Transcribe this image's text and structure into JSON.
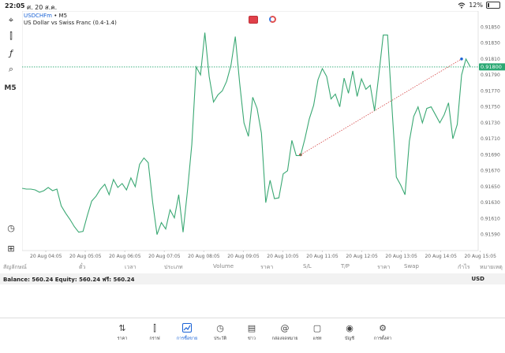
{
  "status": {
    "time": "22:05",
    "date": "ศ. 20 ส.ค.",
    "battery": "12%",
    "wifi_icon": "wifi-icon"
  },
  "symbol": {
    "name": "USDCHFm",
    "timeframe_suffix": " • M5",
    "description": "US Dollar vs Swiss Franc (0.4-1.4)"
  },
  "toolbar": {
    "timeframe": "M5"
  },
  "chart_data": {
    "type": "line",
    "current_price_label": "0.91800",
    "price_line": 0.918,
    "ylim": [
      0.9157,
      0.9187
    ],
    "y_ticks": [
      "0.91850",
      "0.91830",
      "0.91810",
      "0.91790",
      "0.91770",
      "0.91750",
      "0.91730",
      "0.91710",
      "0.91690",
      "0.91670",
      "0.91650",
      "0.91630",
      "0.91610",
      "0.91590"
    ],
    "x_ticks": [
      "20 Aug 04:05",
      "20 Aug 05:05",
      "20 Aug 06:05",
      "20 Aug 07:05",
      "20 Aug 08:05",
      "20 Aug 09:05",
      "20 Aug 10:05",
      "20 Aug 11:05",
      "20 Aug 12:05",
      "20 Aug 13:05",
      "20 Aug 14:05",
      "20 Aug 15:05"
    ],
    "trend_line": {
      "from": [
        0.9169,
        0.9169
      ],
      "to": [
        0.9181,
        0.9181
      ]
    },
    "series": [
      {
        "values": [
          0.91648,
          0.91647,
          0.91647,
          0.91646,
          0.91643,
          0.91645,
          0.91649,
          0.91645,
          0.91647,
          0.91626,
          0.91617,
          0.91609,
          0.916,
          0.91593,
          0.91594,
          0.91614,
          0.91632,
          0.91638,
          0.91647,
          0.91653,
          0.9164,
          0.91659,
          0.91649,
          0.91654,
          0.91646,
          0.91661,
          0.9165,
          0.91678,
          0.91686,
          0.9168,
          0.91631,
          0.9159,
          0.91605,
          0.91597,
          0.91621,
          0.91611,
          0.9164,
          0.91593,
          0.91645,
          0.91703,
          0.918,
          0.9179,
          0.91843,
          0.91788,
          0.91756,
          0.91765,
          0.9177,
          0.91782,
          0.91802,
          0.91838,
          0.9178,
          0.9173,
          0.91713,
          0.91762,
          0.91748,
          0.91717,
          0.9163,
          0.91658,
          0.91635,
          0.91636,
          0.91666,
          0.9167,
          0.91708,
          0.91689,
          0.91689,
          0.9171,
          0.91735,
          0.91752,
          0.91784,
          0.91798,
          0.91788,
          0.9176,
          0.91766,
          0.9175,
          0.91786,
          0.91767,
          0.91795,
          0.91763,
          0.91785,
          0.91772,
          0.91777,
          0.91745,
          0.91791,
          0.9184,
          0.9184,
          0.9175,
          0.91662,
          0.91652,
          0.9164,
          0.91707,
          0.91738,
          0.9175,
          0.9173,
          0.91748,
          0.9175,
          0.9174,
          0.9173,
          0.9174,
          0.91755,
          0.9171,
          0.91728,
          0.9179,
          0.9181,
          0.918
        ]
      }
    ]
  },
  "table_header": {
    "c1": "สัญลักษณ์",
    "c2": "ตั๋ว",
    "c3": "เวลา",
    "c4": "ประเภท",
    "c5": "Volume",
    "c6": "ราคา",
    "c7": "S/L",
    "c8": "T/P",
    "c9": "ราคา",
    "c10": "Swap",
    "c11": "กำไร",
    "c12": "หมายเหตุ"
  },
  "balance": {
    "text": "Balance: 560.24 Equity: 560.24 ฟรี: 560.24",
    "currency": "USD"
  },
  "nav": [
    {
      "label": "ราคา",
      "icon": "sort-arrows-icon"
    },
    {
      "label": "กราฟ",
      "icon": "candles-icon"
    },
    {
      "label": "การซื้อขาย",
      "icon": "trade-chart-icon"
    },
    {
      "label": "ประวัติ",
      "icon": "history-icon"
    },
    {
      "label": "ข่าว",
      "icon": "news-icon"
    },
    {
      "label": "กล่องจดหมาย",
      "icon": "mail-icon"
    },
    {
      "label": "แชท",
      "icon": "chat-icon"
    },
    {
      "label": "บัญชี",
      "icon": "account-icon"
    },
    {
      "label": "การตั้งค่า",
      "icon": "settings-icon"
    }
  ],
  "colors": {
    "line": "#3aa873",
    "price_line": "#2aa873",
    "accent": "#1a63d6",
    "trend": "#d03030"
  }
}
